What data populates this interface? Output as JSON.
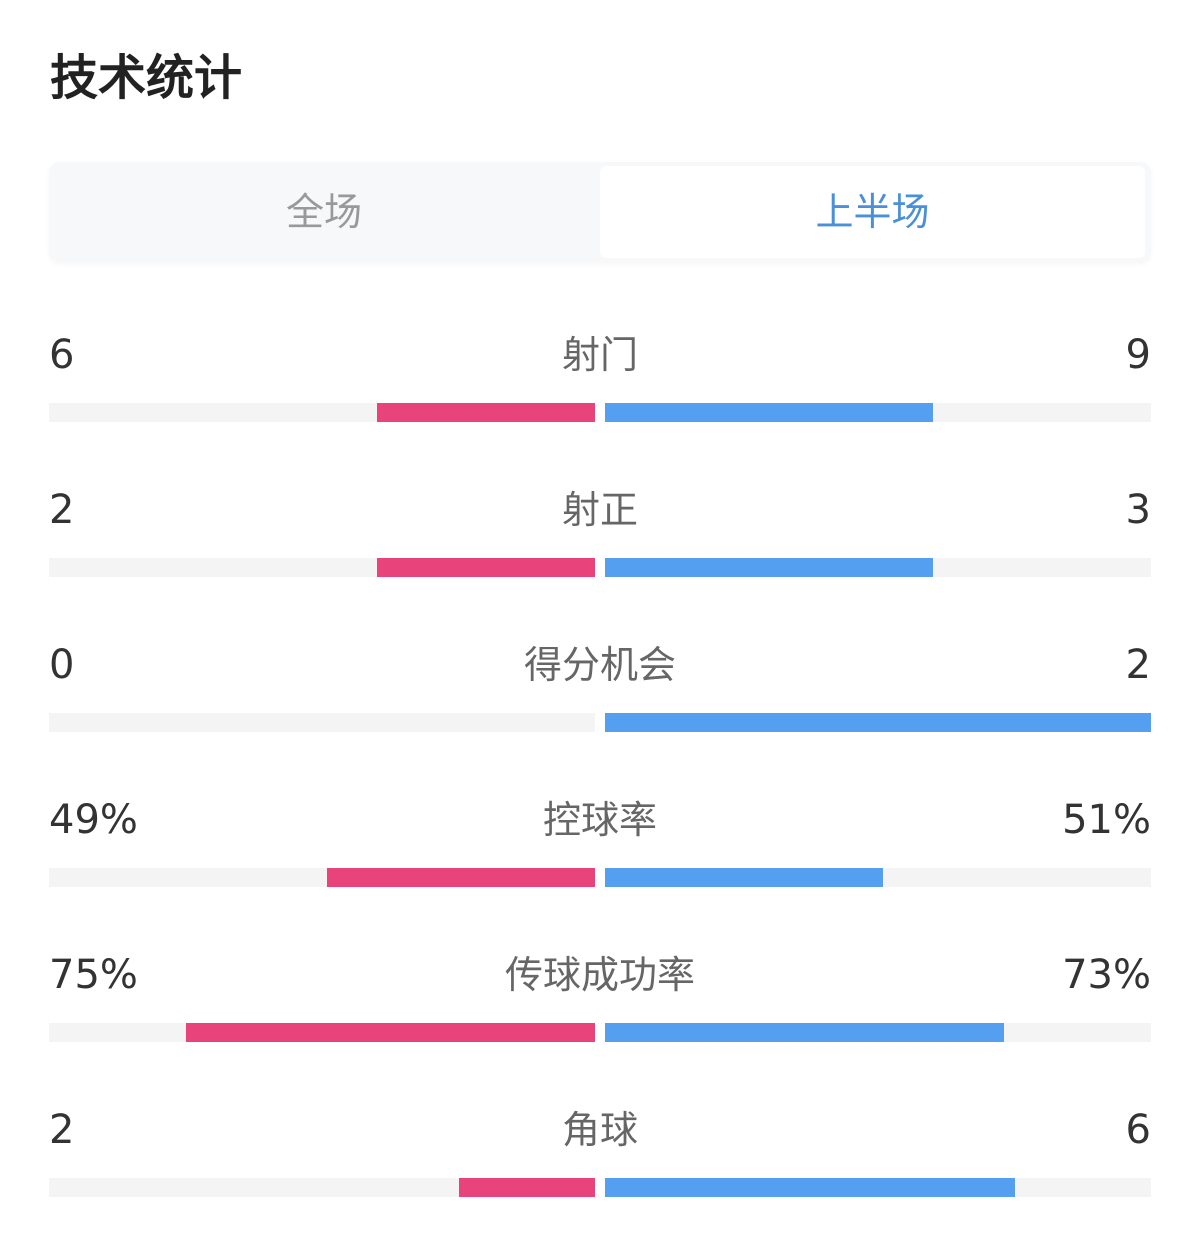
{
  "title": "技术统计",
  "tabs": [
    {
      "label": "全场",
      "active": false
    },
    {
      "label": "上半场",
      "active": true
    }
  ],
  "colors": {
    "home": "#e8437a",
    "away": "#559ff0",
    "track": "#f4f4f4",
    "active_tab": "#4a90d9"
  },
  "stats": [
    {
      "label": "射门",
      "home": "6",
      "away": "9",
      "home_fill": 0.4,
      "away_fill": 0.6
    },
    {
      "label": "射正",
      "home": "2",
      "away": "3",
      "home_fill": 0.4,
      "away_fill": 0.6
    },
    {
      "label": "得分机会",
      "home": "0",
      "away": "2",
      "home_fill": 0,
      "away_fill": 1
    },
    {
      "label": "控球率",
      "home": "49%",
      "away": "51%",
      "home_fill": 0.49,
      "away_fill": 0.51
    },
    {
      "label": "传球成功率",
      "home": "75%",
      "away": "73%",
      "home_fill": 0.75,
      "away_fill": 0.73
    },
    {
      "label": "角球",
      "home": "2",
      "away": "6",
      "home_fill": 0.25,
      "away_fill": 0.75
    }
  ]
}
